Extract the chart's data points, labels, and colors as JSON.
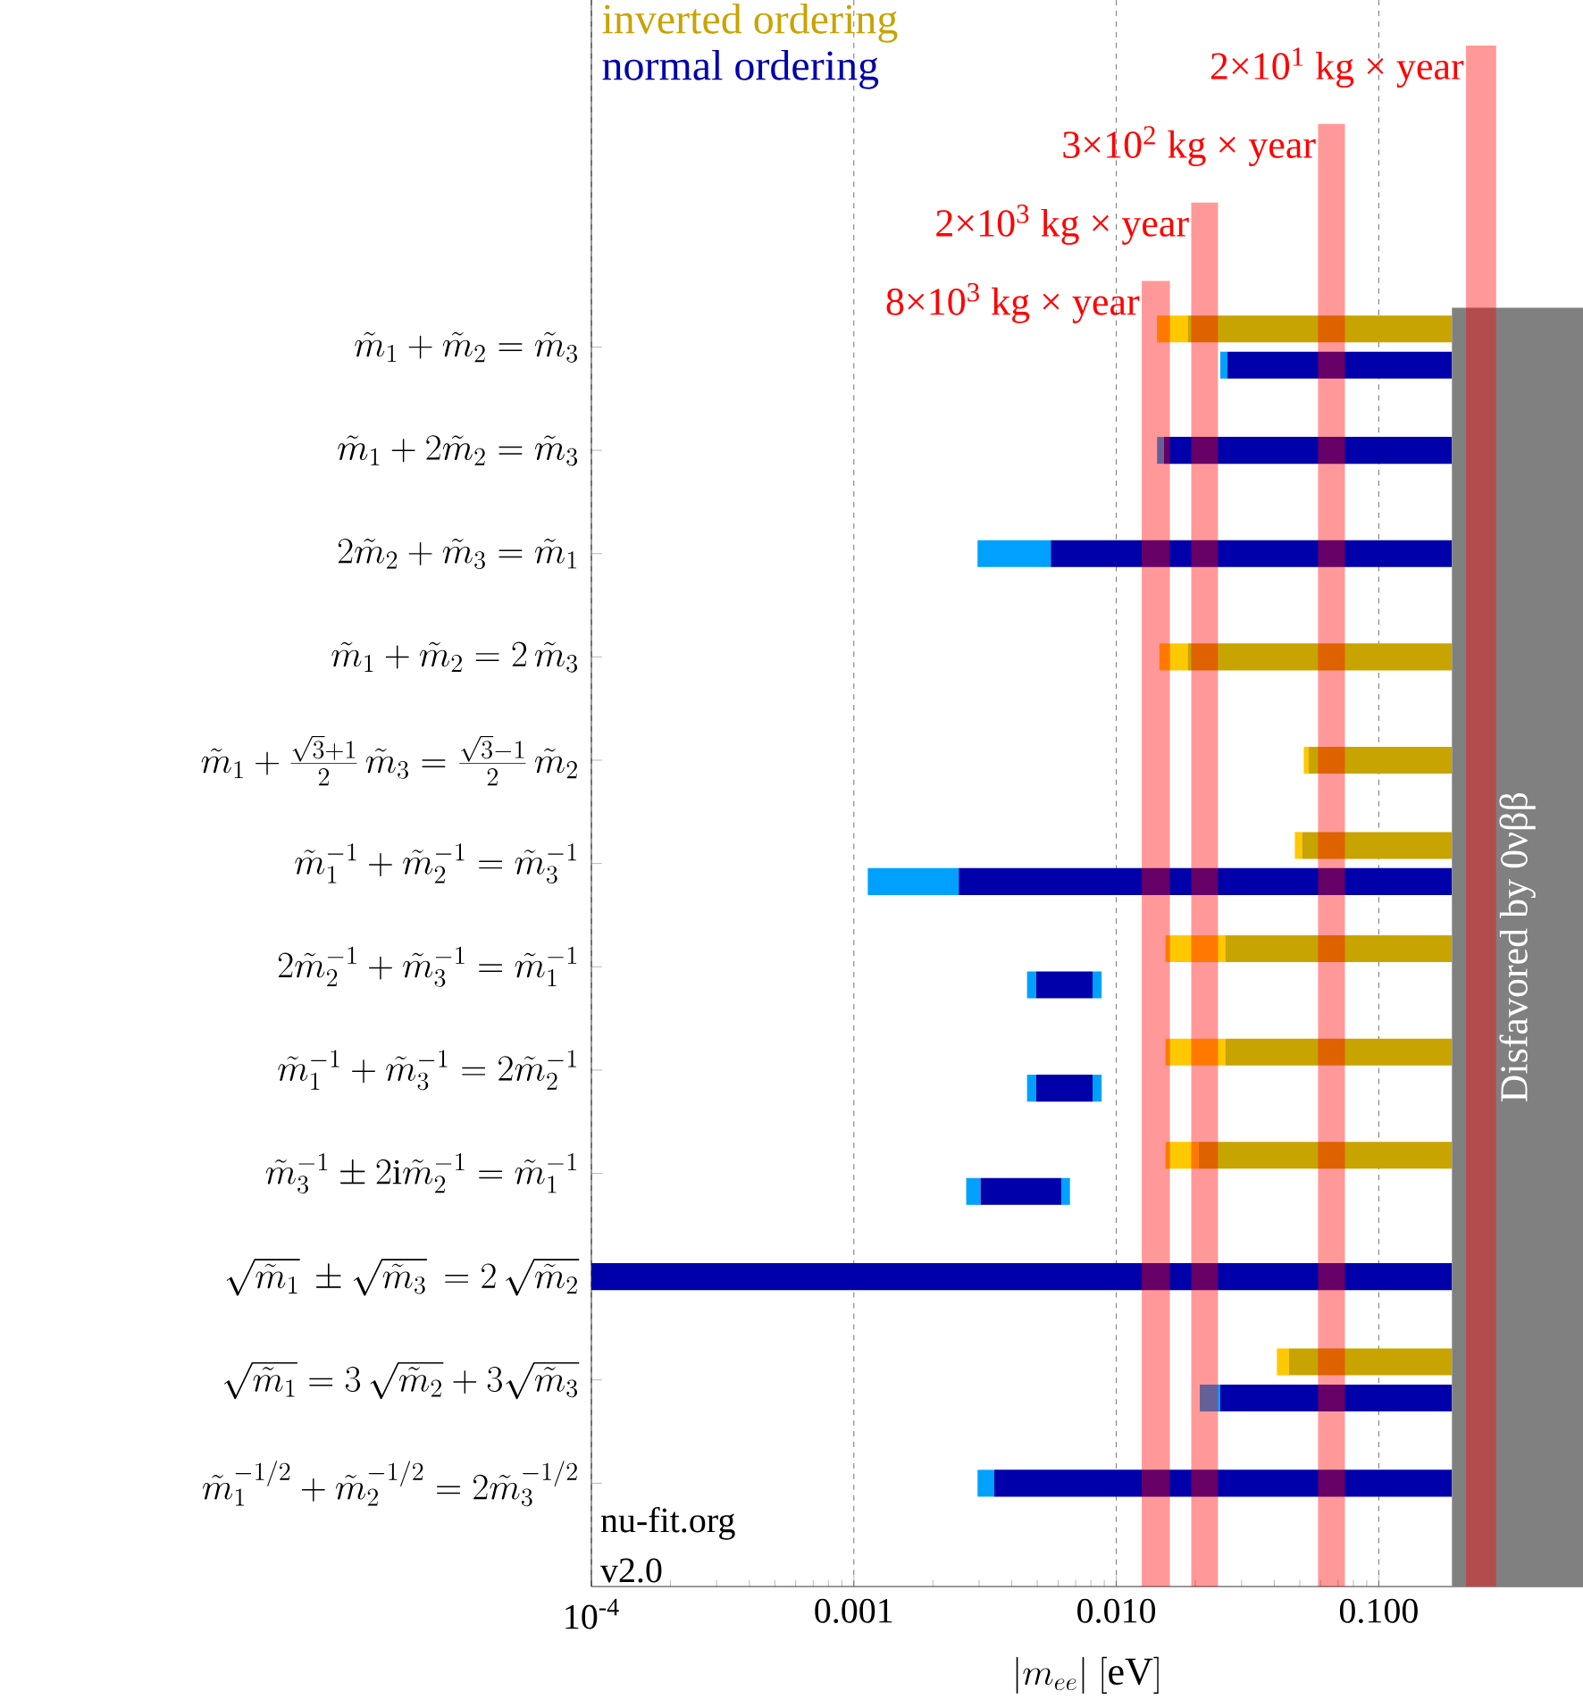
{
  "chart_data": {
    "type": "bar",
    "orientation": "horizontal",
    "log": "x",
    "xlabel": "|m_{ee}|\\ [\\mathrm{eV}]",
    "categories": [
      "\\tilde{m}_1+\\tilde{m}_2=\\tilde{m}_3",
      "\\tilde{m}_1+2\\tilde{m}_2=\\tilde{m}_3",
      "2\\tilde{m}_2+\\tilde{m}_3=\\tilde{m}_1",
      "\\tilde{m}_1+\\tilde{m}_2=2\\,\\tilde{m}_3",
      "\\tilde{m}_1+\\frac{\\sqrt{3}+1}{2}\\,\\tilde{m}_3=\\frac{\\sqrt{3}-1}{2}\\,\\tilde{m}_2",
      "\\tilde{m}_1^{-1}+\\tilde{m}_2^{-1}=\\tilde{m}_3^{-1}",
      "2\\tilde{m}_2^{-1}+\\tilde{m}_3^{-1}=\\tilde{m}_1^{-1}",
      "\\tilde{m}_1^{-1}+\\tilde{m}_3^{-1}=2\\tilde{m}_2^{-1}",
      "\\tilde{m}_3^{-1}\\pm 2\\mathrm{i}\\tilde{m}_2^{-1}=\\tilde{m}_1^{-1}",
      "\\sqrt{\\tilde{m}_1}\\,\\pm\\sqrt{\\tilde{m}_3}\\,=2\\,\\sqrt{\\tilde{m}_2}",
      "\\sqrt{\\tilde{m}_1}=3\\,\\sqrt{\\tilde{m}_2}+3\\sqrt{\\tilde{m}_3}",
      "\\tilde{m}_1^{-1/2}+\\tilde{m}_2^{-1/2}=2\\tilde{m}_3^{-1/2}"
    ],
    "series": [
      {
        "color": "#ffc800",
        "base": [
          0.0143,
          null,
          null,
          0.0146,
          0.0518,
          0.0479,
          0.0154,
          0.0154,
          0.0154,
          null,
          0.0409,
          null
        ],
        "values": [
          0.0044,
          null,
          null,
          0.0041,
          0.0023,
          0.0031,
          0.0106,
          0.0106,
          0.0052,
          null,
          0.0046,
          null
        ]
      },
      {
        "name": "inverted ordering",
        "color": "#c8a400",
        "base": [
          0.0187,
          null,
          null,
          0.0187,
          0.0541,
          0.051,
          0.026,
          0.026,
          0.0206,
          null,
          0.0455,
          null
        ],
        "values": [
          0.1713,
          null,
          null,
          0.1713,
          0.1359,
          0.139,
          0.164,
          0.164,
          0.1694,
          null,
          0.1445,
          null
        ]
      },
      {
        "color": "#00a0ff",
        "base": [
          0.0249,
          0.0143,
          0.00296,
          null,
          null,
          0.00113,
          0.00457,
          0.00457,
          0.00268,
          null,
          0.0208,
          0.00296
        ],
        "values": [
          0.0016,
          0.0009,
          0.00267,
          null,
          null,
          0.00138,
          0.00038,
          0.00038,
          0.00036,
          null,
          0.0041,
          0.00047
        ]
      },
      {
        "color": "#00a0ff",
        "base": [
          null,
          null,
          null,
          null,
          null,
          null,
          0.00812,
          0.00812,
          0.00618,
          null,
          null,
          null
        ],
        "values": [
          null,
          null,
          null,
          null,
          null,
          null,
          0.00067,
          0.00067,
          0.00048,
          null,
          null,
          null
        ]
      },
      {
        "name": "normal ordering",
        "color": "#0000aa",
        "base": [
          0.0265,
          0.0152,
          0.00563,
          null,
          null,
          0.00251,
          0.00495,
          0.00495,
          0.00304,
          0.0001,
          0.0249,
          0.00343
        ],
        "values": [
          0.1635,
          0.1748,
          0.18437,
          null,
          null,
          0.18749,
          0.00317,
          0.00317,
          0.00314,
          0.1899,
          0.1651,
          0.18657
        ]
      }
    ],
    "xlim": [
      0.0001,
      0.6
    ],
    "xticks": [
      {
        "value": 0.0001,
        "label": "10$^{-4}$"
      },
      {
        "value": 0.001,
        "label": "0.001"
      },
      {
        "value": 0.01,
        "label": "0.010"
      },
      {
        "value": 0.1,
        "label": "0.100"
      }
    ],
    "grid": "x",
    "legend": "top left",
    "bands": [
      {
        "axis": "x",
        "from": 0.0125,
        "to": 0.016,
        "label": "8×10$^{3}$ kg × year",
        "color": "#ff0000"
      },
      {
        "axis": "x",
        "from": 0.0193,
        "to": 0.0244,
        "label": "2×10$^{3}$ kg × year",
        "color": "#ff0000"
      },
      {
        "axis": "x",
        "from": 0.0587,
        "to": 0.0743,
        "label": "3×10$^{2}$ kg × year",
        "color": "#ff0000"
      },
      {
        "axis": "x",
        "from": 0.215,
        "to": 0.28,
        "label": "2×10$^{1}$ kg × year",
        "color": "#ff0000"
      },
      {
        "axis": "x",
        "from": 0.19,
        "to": 0.6,
        "label": "Disfavored by 0νββ",
        "color": "#808080"
      }
    ],
    "annotations": [
      "nu-fit.org",
      "v2.0"
    ]
  }
}
